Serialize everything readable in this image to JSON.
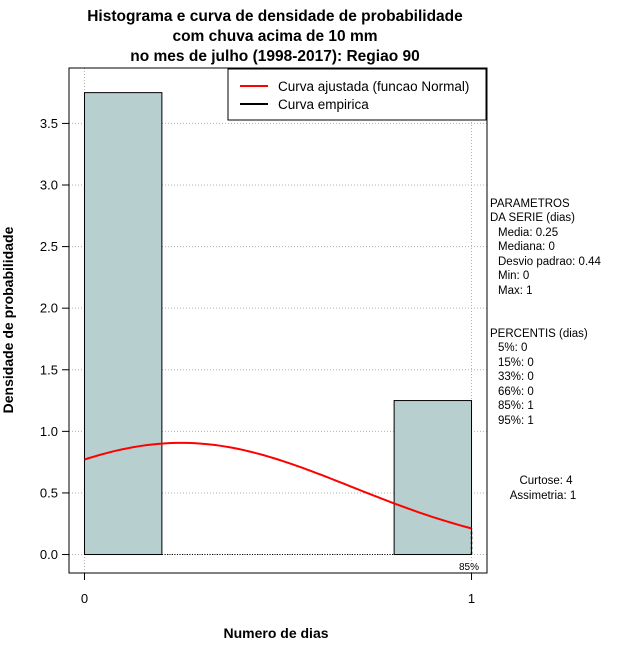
{
  "chart_data": {
    "type": "bar",
    "title_lines": [
      "Histograma e curva de densidade de probabilidade",
      "com chuva acima de 10 mm",
      "no mes de julho (1998-2017): Regiao 90"
    ],
    "xlabel": "Numero de dias",
    "ylabel": "Densidade de probabilidade",
    "xlim": [
      -0.04,
      1.04
    ],
    "ylim": [
      -0.15,
      3.95
    ],
    "x_ticks": [
      0,
      1
    ],
    "x_tick_labels": [
      "0",
      "1"
    ],
    "y_ticks": [
      0.0,
      0.5,
      1.0,
      1.5,
      2.0,
      2.5,
      3.0,
      3.5
    ],
    "y_tick_labels": [
      "0.0",
      "0.5",
      "1.0",
      "1.5",
      "2.0",
      "2.5",
      "3.0",
      "3.5"
    ],
    "grid": true,
    "bars": [
      {
        "x0": 0.0,
        "x1": 0.2,
        "value": 3.75
      },
      {
        "x0": 0.8,
        "x1": 1.0,
        "value": 1.25
      }
    ],
    "fitted_curve": {
      "name": "Curva ajustada (funcao Normal)",
      "color": "#ff0000",
      "mean": 0.25,
      "sd": 0.44,
      "x_range": [
        0,
        1
      ]
    },
    "empirical_curve": {
      "name": "Curva empirica",
      "color": "#000000"
    },
    "percentile_marker": {
      "x": 1,
      "label": "85%"
    },
    "bar_fill": "#b7cfcf",
    "legend": {
      "position": "top-right",
      "entries": [
        {
          "label": "Curva ajustada (funcao Normal)",
          "color": "#ff0000"
        },
        {
          "label": "Curva empirica",
          "color": "#000000"
        }
      ]
    }
  },
  "side_panel": {
    "params_lines": [
      "PARAMETROS",
      "DA SERIE (dias)",
      "Media: 0.25",
      "Mediana: 0",
      "Desvio padrao: 0.44",
      "Min: 0",
      "Max: 1"
    ],
    "percentis_lines": [
      "PERCENTIS (dias)",
      "5%: 0",
      "15%: 0",
      "33%: 0",
      "66%: 0",
      "85%: 1",
      "95%: 1"
    ],
    "shape_lines": [
      "Curtose: 4",
      "Assimetria: 1"
    ]
  }
}
